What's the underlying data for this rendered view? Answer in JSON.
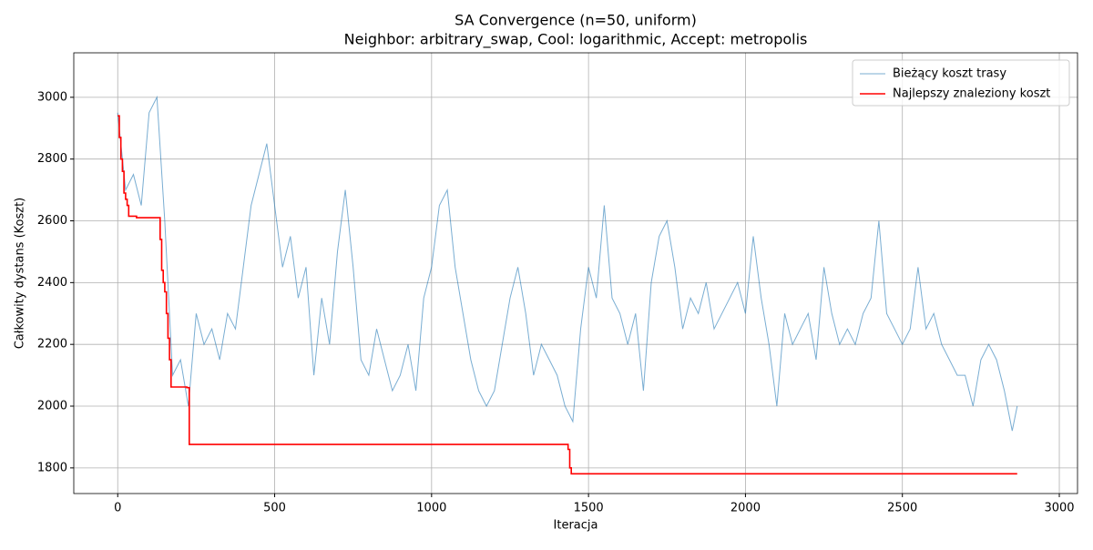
{
  "chart_data": {
    "type": "line",
    "title": "SA Convergence (n=50, uniform)",
    "subtitle": "Neighbor: arbitrary_swap, Cool: logarithmic, Accept: metropolis",
    "x_label": "Iteracja",
    "y_label": "Całkowity dystans (Koszt)",
    "xlim": [
      -140,
      3058
    ],
    "ylim": [
      1717,
      3144
    ],
    "xticks": [
      0,
      500,
      1000,
      1500,
      2000,
      2500,
      3000
    ],
    "yticks": [
      1800,
      2000,
      2200,
      2400,
      2600,
      2800,
      3000
    ],
    "grid": true,
    "legend": "upper right",
    "series": [
      {
        "name": "Bieżący koszt trasy",
        "color": "#1f77b4",
        "x": [
          0,
          25,
          50,
          75,
          100,
          125,
          150,
          175,
          200,
          225,
          250,
          275,
          300,
          325,
          350,
          375,
          400,
          425,
          450,
          475,
          500,
          525,
          550,
          575,
          600,
          625,
          650,
          675,
          700,
          725,
          750,
          775,
          800,
          825,
          850,
          875,
          900,
          925,
          950,
          975,
          1000,
          1025,
          1050,
          1075,
          1100,
          1125,
          1150,
          1175,
          1200,
          1225,
          1250,
          1275,
          1300,
          1325,
          1350,
          1375,
          1400,
          1425,
          1450,
          1475,
          1500,
          1525,
          1550,
          1575,
          1600,
          1625,
          1650,
          1675,
          1700,
          1725,
          1750,
          1775,
          1800,
          1825,
          1850,
          1875,
          1900,
          1925,
          1950,
          1975,
          2000,
          2025,
          2050,
          2075,
          2100,
          2125,
          2150,
          2175,
          2200,
          2225,
          2250,
          2275,
          2300,
          2325,
          2350,
          2375,
          2400,
          2425,
          2450,
          2475,
          2500,
          2525,
          2550,
          2575,
          2600,
          2625,
          2650,
          2675,
          2700,
          2725,
          2750,
          2775,
          2800,
          2825,
          2850,
          2866
        ],
        "values": [
          2950,
          2700,
          2750,
          2650,
          2950,
          3000,
          2600,
          2100,
          2150,
          2000,
          2300,
          2200,
          2250,
          2150,
          2300,
          2250,
          2450,
          2650,
          2750,
          2850,
          2650,
          2450,
          2550,
          2350,
          2450,
          2100,
          2350,
          2200,
          2500,
          2700,
          2450,
          2150,
          2100,
          2250,
          2150,
          2050,
          2100,
          2200,
          2050,
          2350,
          2450,
          2650,
          2700,
          2450,
          2300,
          2150,
          2050,
          2000,
          2050,
          2200,
          2350,
          2450,
          2300,
          2100,
          2200,
          2150,
          2100,
          2000,
          1950,
          2250,
          2450,
          2350,
          2650,
          2350,
          2300,
          2200,
          2300,
          2050,
          2400,
          2550,
          2600,
          2450,
          2250,
          2350,
          2300,
          2400,
          2250,
          2300,
          2350,
          2400,
          2300,
          2550,
          2350,
          2200,
          2000,
          2300,
          2200,
          2250,
          2300,
          2150,
          2450,
          2300,
          2200,
          2250,
          2200,
          2300,
          2350,
          2600,
          2300,
          2250,
          2200,
          2250,
          2450,
          2250,
          2300,
          2200,
          2150,
          2100,
          2100,
          2000,
          2150,
          2200,
          2150,
          2050,
          1920,
          2000
        ]
      },
      {
        "name": "Najlepszy znaleziony koszt",
        "color": "#ff0000",
        "x": [
          0,
          5,
          5,
          10,
          10,
          15,
          15,
          20,
          20,
          25,
          25,
          30,
          30,
          35,
          35,
          60,
          60,
          135,
          135,
          140,
          140,
          145,
          145,
          150,
          150,
          155,
          155,
          160,
          160,
          165,
          165,
          170,
          170,
          220,
          220,
          228,
          228,
          1435,
          1435,
          1440,
          1440,
          1445,
          1445,
          2866
        ],
        "values": [
          2940,
          2940,
          2870,
          2870,
          2800,
          2800,
          2760,
          2760,
          2690,
          2690,
          2670,
          2670,
          2650,
          2650,
          2615,
          2615,
          2610,
          2610,
          2540,
          2540,
          2440,
          2440,
          2400,
          2400,
          2370,
          2370,
          2300,
          2300,
          2220,
          2220,
          2150,
          2150,
          2062,
          2062,
          2060,
          2060,
          1876,
          1876,
          1860,
          1860,
          1800,
          1800,
          1781,
          1781
        ]
      }
    ]
  }
}
